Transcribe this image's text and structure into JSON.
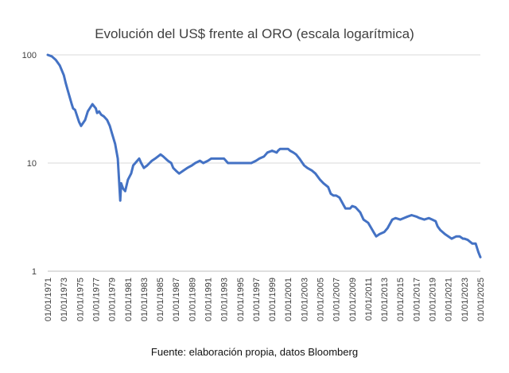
{
  "chart_data": {
    "type": "line",
    "title": "Evolución del US$ frente al ORO  (escala logarítmica)",
    "source": "Fuente: elaboración propia, datos Bloomberg",
    "xlabel": "",
    "ylabel": "",
    "yscale": "log",
    "ylim": [
      1,
      100
    ],
    "yticks": [
      1,
      10,
      100
    ],
    "ytick_labels": [
      "1",
      "10",
      "100"
    ],
    "xlim": [
      "1971-01-01",
      "2025-01-01"
    ],
    "xticks": [
      "1971-01-01",
      "1973-01-01",
      "1975-01-01",
      "1977-01-01",
      "1979-01-01",
      "1981-01-01",
      "1983-01-01",
      "1985-01-01",
      "1987-01-01",
      "1989-01-01",
      "1991-01-01",
      "1993-01-01",
      "1995-01-01",
      "1997-01-01",
      "1999-01-01",
      "2001-01-01",
      "2003-01-01",
      "2005-01-01",
      "2007-01-01",
      "2009-01-01",
      "2011-01-01",
      "2013-01-01",
      "2015-01-01",
      "2017-01-01",
      "2019-01-01",
      "2021-01-01",
      "2023-01-01",
      "2025-01-01"
    ],
    "xtick_labels": [
      "01/01/1971",
      "01/01/1973",
      "01/01/1975",
      "01/01/1977",
      "01/01/1979",
      "01/01/1981",
      "01/01/1983",
      "01/01/1985",
      "01/01/1987",
      "01/01/1989",
      "01/01/1991",
      "01/01/1993",
      "01/01/1995",
      "01/01/1997",
      "01/01/1999",
      "01/01/2001",
      "01/01/2003",
      "01/01/2005",
      "01/01/2007",
      "01/01/2009",
      "01/01/2011",
      "01/01/2013",
      "01/01/2015",
      "01/01/2017",
      "01/01/2019",
      "01/01/2021",
      "01/01/2023",
      "01/01/2025"
    ],
    "grid": true,
    "legend": "none",
    "line_color": "#4472C4",
    "series": [
      {
        "x": [
          "1971-01-01",
          "1971-07-01",
          "1972-01-01",
          "1972-07-01",
          "1973-01-01",
          "1973-04-01",
          "1973-07-01",
          "1974-01-01",
          "1974-03-01",
          "1974-06-01",
          "1974-12-01",
          "1975-03-01",
          "1975-09-01",
          "1976-01-01",
          "1976-08-01",
          "1977-01-01",
          "1977-03-01",
          "1977-06-01",
          "1977-09-01",
          "1978-01-01",
          "1978-06-01",
          "1978-10-01",
          "1979-01-01",
          "1979-06-01",
          "1979-10-01",
          "1980-01-21",
          "1980-03-01",
          "1980-06-01",
          "1980-09-01",
          "1981-01-01",
          "1981-06-01",
          "1981-09-01",
          "1982-06-01",
          "1982-09-01",
          "1983-01-01",
          "1983-06-01",
          "1984-01-01",
          "1984-06-01",
          "1985-02-01",
          "1985-06-01",
          "1986-01-01",
          "1986-06-01",
          "1986-09-01",
          "1987-01-01",
          "1987-06-01",
          "1987-12-01",
          "1988-06-01",
          "1989-01-01",
          "1989-06-01",
          "1990-01-01",
          "1990-06-01",
          "1991-01-01",
          "1991-06-01",
          "1992-01-01",
          "1992-06-01",
          "1993-01-01",
          "1993-04-01",
          "1993-07-01",
          "1994-01-01",
          "1994-06-01",
          "1995-01-01",
          "1995-06-01",
          "1996-01-01",
          "1996-06-01",
          "1997-01-01",
          "1997-06-01",
          "1998-01-01",
          "1998-06-01",
          "1999-01-01",
          "1999-08-01",
          "1999-10-01",
          "2000-01-01",
          "2000-06-01",
          "2001-01-01",
          "2001-04-01",
          "2001-09-01",
          "2002-01-01",
          "2002-06-01",
          "2003-01-01",
          "2003-06-01",
          "2004-01-01",
          "2004-06-01",
          "2005-01-01",
          "2005-06-01",
          "2006-01-01",
          "2006-05-01",
          "2006-09-01",
          "2007-01-01",
          "2007-06-01",
          "2008-01-01",
          "2008-03-01",
          "2008-10-01",
          "2009-01-01",
          "2009-06-01",
          "2010-01-01",
          "2010-06-01",
          "2011-01-01",
          "2011-09-01",
          "2012-01-01",
          "2012-06-01",
          "2013-01-01",
          "2013-06-01",
          "2014-01-01",
          "2014-06-01",
          "2015-01-01",
          "2015-12-01",
          "2016-06-01",
          "2017-01-01",
          "2017-06-01",
          "2018-01-01",
          "2018-08-01",
          "2019-01-01",
          "2019-06-01",
          "2019-09-01",
          "2020-01-01",
          "2020-08-01",
          "2021-01-01",
          "2021-06-01",
          "2022-01-01",
          "2022-06-01",
          "2022-11-01",
          "2023-01-01",
          "2023-06-01",
          "2024-01-01",
          "2024-06-01",
          "2024-10-01",
          "2025-01-01"
        ],
        "y": [
          100,
          97,
          90,
          80,
          65,
          55,
          47,
          35,
          32,
          31,
          24,
          22,
          25,
          30,
          35,
          32,
          29,
          30,
          28,
          27,
          25,
          22,
          19,
          15,
          11,
          4.5,
          6.5,
          5.8,
          5.5,
          7.0,
          8.0,
          9.5,
          11,
          10,
          9.0,
          9.5,
          10.5,
          11,
          12,
          11.5,
          10.5,
          10,
          9.0,
          8.5,
          8.0,
          8.5,
          9.0,
          9.5,
          10,
          10.5,
          10,
          10.5,
          11,
          11,
          11,
          11,
          10.5,
          10,
          10,
          10,
          10,
          10,
          10,
          10,
          10.5,
          11,
          11.5,
          12.5,
          13,
          12.5,
          13,
          13.5,
          13.5,
          13.5,
          13,
          12.5,
          12,
          11,
          9.5,
          9.0,
          8.5,
          8.0,
          7.0,
          6.5,
          6.0,
          5.2,
          5.0,
          5.0,
          4.8,
          4.0,
          3.8,
          3.8,
          4.0,
          3.9,
          3.5,
          3.0,
          2.8,
          2.3,
          2.1,
          2.2,
          2.3,
          2.5,
          3.0,
          3.1,
          3.0,
          3.2,
          3.3,
          3.2,
          3.1,
          3.0,
          3.1,
          3.0,
          2.9,
          2.6,
          2.4,
          2.2,
          2.1,
          2.0,
          2.1,
          2.1,
          2.0,
          2.0,
          1.95,
          1.8,
          1.8,
          1.5,
          1.35
        ]
      }
    ]
  }
}
